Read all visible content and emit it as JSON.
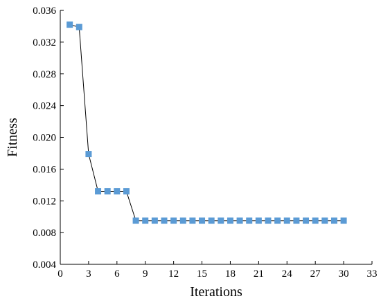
{
  "chart_data": {
    "type": "line",
    "title": "",
    "xlabel": "Iterations",
    "ylabel": "Fitness",
    "xlim": [
      0,
      33
    ],
    "ylim": [
      0.004,
      0.036
    ],
    "xticks": [
      "0",
      "3",
      "6",
      "9",
      "12",
      "15",
      "18",
      "21",
      "24",
      "27",
      "30",
      "33"
    ],
    "yticks": [
      "0.004",
      "0.008",
      "0.012",
      "0.016",
      "0.020",
      "0.024",
      "0.028",
      "0.032",
      "0.036"
    ],
    "grid": false,
    "legend": "none",
    "series": [
      {
        "color": "#5b9bd5",
        "line_color": "#000000",
        "marker": "square",
        "x": [
          1,
          2,
          3,
          4,
          5,
          6,
          7,
          8,
          9,
          10,
          11,
          12,
          13,
          14,
          15,
          16,
          17,
          18,
          19,
          20,
          21,
          22,
          23,
          24,
          25,
          26,
          27,
          28,
          29,
          30
        ],
        "y": [
          0.0342,
          0.0339,
          0.0179,
          0.0132,
          0.0132,
          0.0132,
          0.0132,
          0.0095,
          0.0095,
          0.0095,
          0.0095,
          0.0095,
          0.0095,
          0.0095,
          0.0095,
          0.0095,
          0.0095,
          0.0095,
          0.0095,
          0.0095,
          0.0095,
          0.0095,
          0.0095,
          0.0095,
          0.0095,
          0.0095,
          0.0095,
          0.0095,
          0.0095,
          0.0095
        ]
      }
    ]
  }
}
